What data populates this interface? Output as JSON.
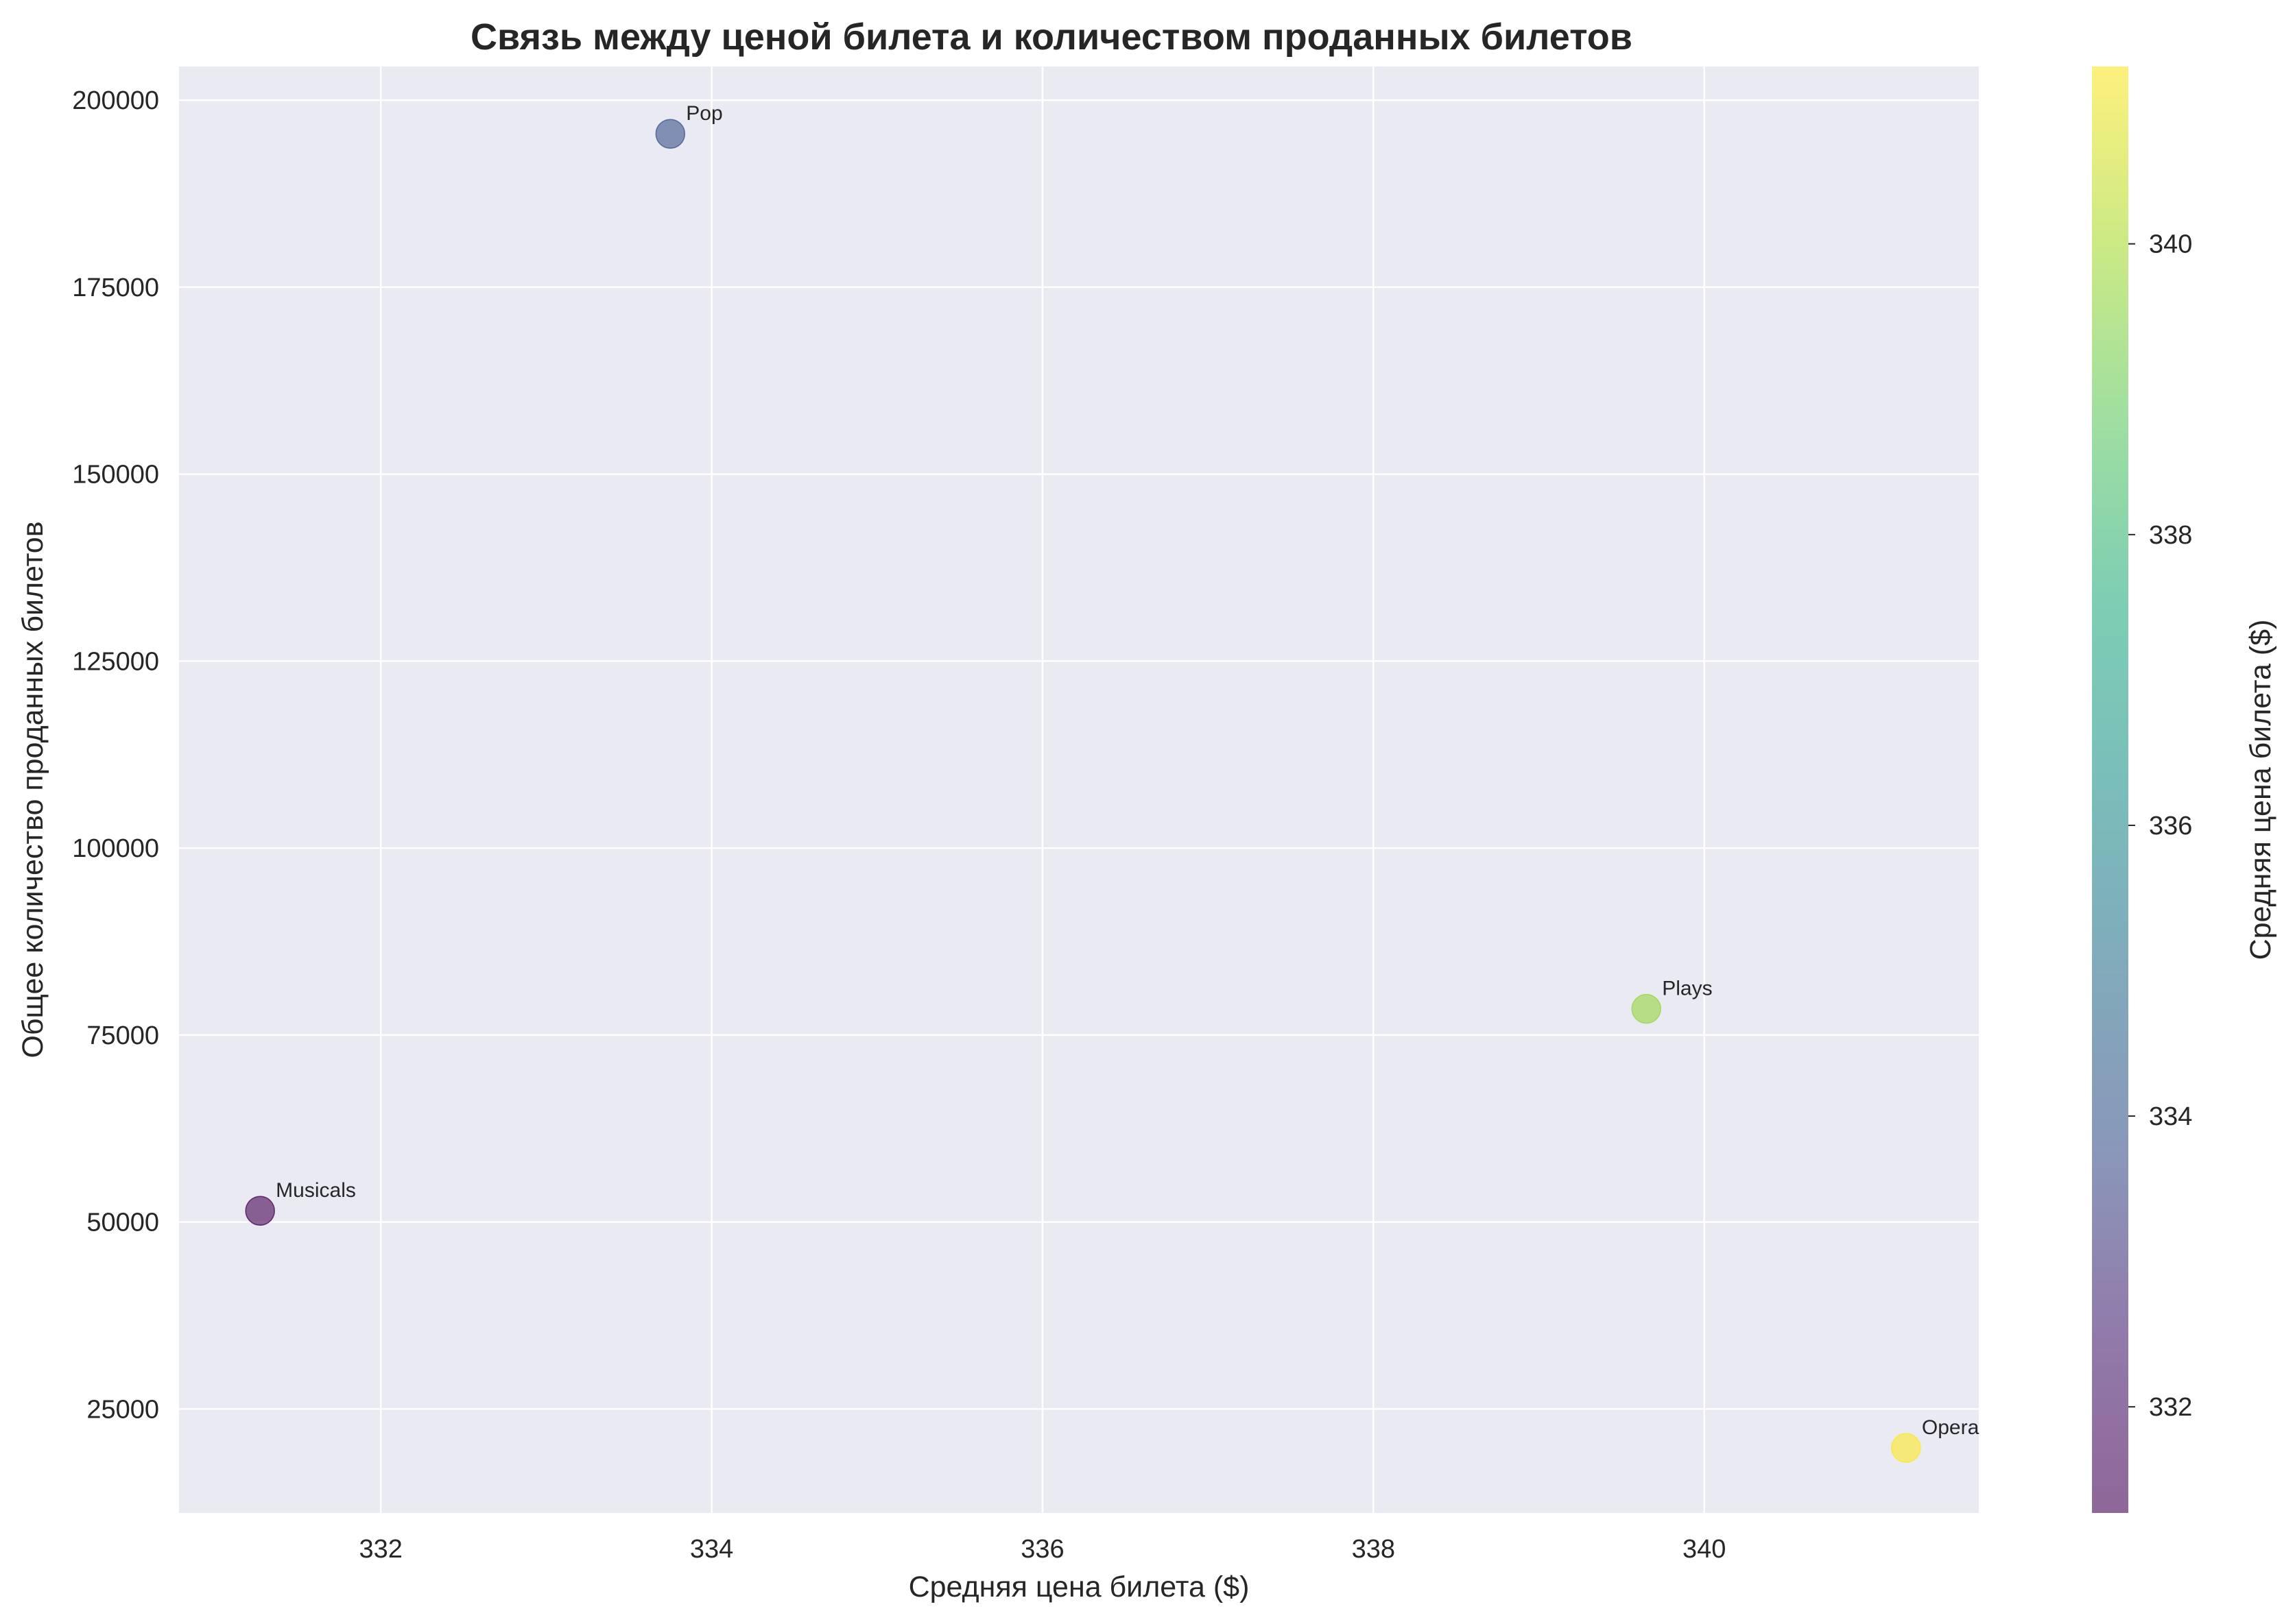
{
  "chart_data": {
    "type": "scatter",
    "title": "Связь между ценой билета и количеством проданных билетов",
    "xlabel": "Средняя цена билета ($)",
    "ylabel": "Общее количество проданных билетов",
    "colorbar_label": "Средняя цена билета ($)",
    "colormap": "viridis",
    "xlim": [
      330.78,
      341.66
    ],
    "ylim": [
      11100,
      204500
    ],
    "color_range": [
      331.27,
      341.22
    ],
    "x_ticks": [
      332,
      334,
      336,
      338,
      340
    ],
    "y_ticks": [
      25000,
      50000,
      75000,
      100000,
      125000,
      150000,
      175000,
      200000
    ],
    "colorbar_ticks": [
      332,
      334,
      336,
      338,
      340
    ],
    "grid": true,
    "points": [
      {
        "label": "Musicals",
        "x": 331.27,
        "y": 51500
      },
      {
        "label": "Pop",
        "x": 333.75,
        "y": 195500
      },
      {
        "label": "Plays",
        "x": 339.65,
        "y": 78500
      },
      {
        "label": "Opera",
        "x": 341.22,
        "y": 19800
      }
    ],
    "colors": {
      "plot_background": "#eaeaf2",
      "grid": "#ffffff",
      "text": "#262626"
    }
  }
}
